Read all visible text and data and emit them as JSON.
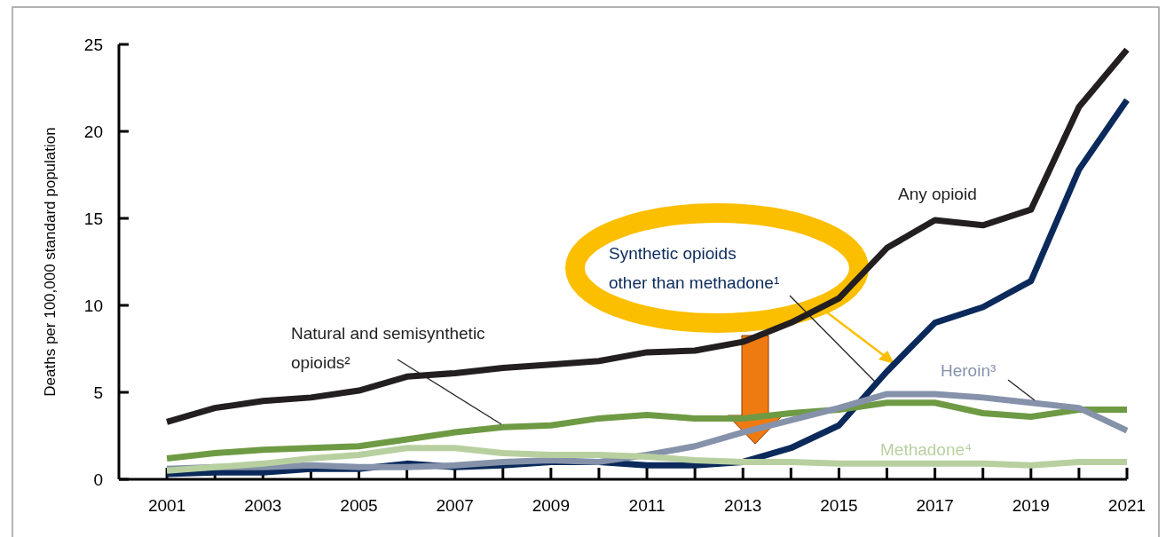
{
  "chart_data": {
    "type": "line",
    "ylabel": "Deaths per 100,000 standard population",
    "x": [
      2001,
      2002,
      2003,
      2004,
      2005,
      2006,
      2007,
      2008,
      2009,
      2010,
      2011,
      2012,
      2013,
      2014,
      2015,
      2016,
      2017,
      2018,
      2019,
      2020,
      2021
    ],
    "xlim": [
      2000,
      2021
    ],
    "xticks": [
      2001,
      {
        "value": 2002,
        "label": null
      },
      2003,
      {
        "value": 2004,
        "label": null
      },
      2005,
      {
        "value": 2006,
        "label": null
      },
      2007,
      {
        "value": 2008,
        "label": null
      },
      2009,
      {
        "value": 2010,
        "label": null
      },
      2011,
      {
        "value": 2012,
        "label": null
      },
      2013,
      {
        "value": 2014,
        "label": null
      },
      2015,
      {
        "value": 2016,
        "label": null
      },
      2017,
      {
        "value": 2018,
        "label": null
      },
      2019,
      {
        "value": 2020,
        "label": null
      },
      2021
    ],
    "ylim": [
      0,
      25
    ],
    "yticks": [
      0,
      5,
      10,
      15,
      20,
      25
    ],
    "grid": false,
    "marker": "none",
    "line_style": "solid",
    "series": [
      {
        "name": "Any opioid",
        "color": "#231f20",
        "values": [
          3.3,
          4.1,
          4.5,
          4.7,
          5.1,
          5.9,
          6.1,
          6.4,
          6.6,
          6.8,
          7.3,
          7.4,
          7.9,
          9.0,
          10.4,
          13.3,
          14.9,
          14.6,
          15.5,
          21.4,
          24.7
        ]
      },
      {
        "name": "Synthetic opioids other than methadone¹",
        "color": "#0b2a5b",
        "values": [
          0.3,
          0.4,
          0.4,
          0.6,
          0.6,
          0.9,
          0.7,
          0.8,
          1.0,
          1.0,
          0.8,
          0.8,
          1.0,
          1.8,
          3.1,
          6.2,
          9.0,
          9.9,
          11.4,
          17.8,
          21.8
        ]
      },
      {
        "name": "Natural and semisynthetic opioids²",
        "color": "#6e9a44",
        "values": [
          1.2,
          1.5,
          1.7,
          1.8,
          1.9,
          2.3,
          2.7,
          3.0,
          3.1,
          3.5,
          3.7,
          3.5,
          3.5,
          3.8,
          4.0,
          4.4,
          4.4,
          3.8,
          3.6,
          4.0,
          4.0
        ]
      },
      {
        "name": "Heroin³",
        "color": "#8592aa",
        "values": [
          0.6,
          0.7,
          0.7,
          0.8,
          0.7,
          0.7,
          0.8,
          1.0,
          1.1,
          1.0,
          1.4,
          1.9,
          2.7,
          3.4,
          4.1,
          4.9,
          4.9,
          4.7,
          4.4,
          4.1,
          2.8
        ]
      },
      {
        "name": "Methadone⁴",
        "color": "#b8d0a0",
        "values": [
          0.5,
          0.7,
          0.9,
          1.2,
          1.4,
          1.8,
          1.8,
          1.5,
          1.4,
          1.4,
          1.3,
          1.1,
          1.0,
          1.0,
          0.9,
          0.9,
          0.9,
          0.9,
          0.8,
          1.0,
          1.0
        ]
      }
    ]
  }
}
